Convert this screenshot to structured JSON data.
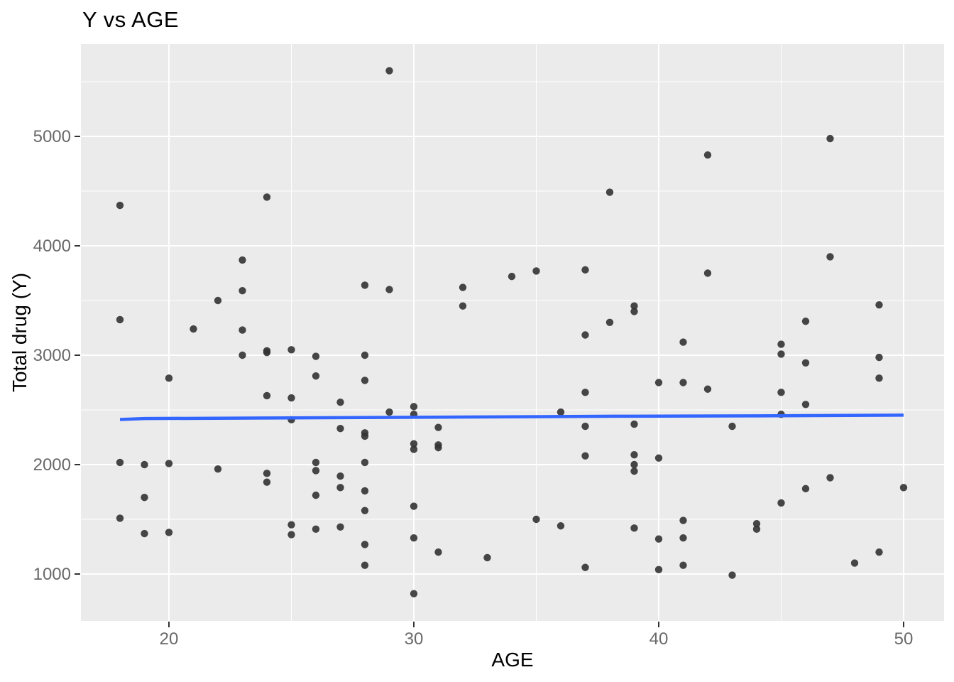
{
  "page": {
    "title": "Y vs AGE"
  },
  "chart_data": {
    "type": "scatter",
    "title": "Y vs AGE",
    "xlabel": "AGE",
    "ylabel": "Total drug (Y)",
    "x_ticks": [
      20,
      30,
      40,
      50
    ],
    "y_ticks": [
      1000,
      2000,
      3000,
      4000,
      5000
    ],
    "x_minor_gridlines": [
      25,
      35,
      45
    ],
    "y_minor_gridlines": [
      1500,
      2500,
      3500,
      4500,
      5500
    ],
    "xlim": [
      16.4,
      51.7
    ],
    "ylim": [
      575,
      5845
    ],
    "grid": "on",
    "legend": "none",
    "points": [
      [
        18,
        4370
      ],
      [
        18,
        3325
      ],
      [
        18,
        2020
      ],
      [
        18,
        1510
      ],
      [
        19,
        2000
      ],
      [
        19,
        1700
      ],
      [
        19,
        1370
      ],
      [
        20,
        2790
      ],
      [
        20,
        2010
      ],
      [
        20,
        1380
      ],
      [
        21,
        3240
      ],
      [
        22,
        3500
      ],
      [
        22,
        1960
      ],
      [
        23,
        3870
      ],
      [
        23,
        3590
      ],
      [
        23,
        3230
      ],
      [
        23,
        3000
      ],
      [
        24,
        4445
      ],
      [
        24,
        3040
      ],
      [
        24,
        3025
      ],
      [
        24,
        2630
      ],
      [
        24,
        1920
      ],
      [
        24,
        1840
      ],
      [
        25,
        3050
      ],
      [
        25,
        2610
      ],
      [
        25,
        2410
      ],
      [
        25,
        1450
      ],
      [
        25,
        1360
      ],
      [
        26,
        2990
      ],
      [
        26,
        2810
      ],
      [
        26,
        2020
      ],
      [
        26,
        1945
      ],
      [
        26,
        1720
      ],
      [
        26,
        1410
      ],
      [
        27,
        2570
      ],
      [
        27,
        2330
      ],
      [
        27,
        1895
      ],
      [
        27,
        1790
      ],
      [
        27,
        1430
      ],
      [
        28,
        3640
      ],
      [
        28,
        3000
      ],
      [
        28,
        2770
      ],
      [
        28,
        2290
      ],
      [
        28,
        2260
      ],
      [
        28,
        2020
      ],
      [
        28,
        1760
      ],
      [
        28,
        1580
      ],
      [
        28,
        1270
      ],
      [
        28,
        1080
      ],
      [
        29,
        5600
      ],
      [
        29,
        3600
      ],
      [
        29,
        2480
      ],
      [
        30,
        2530
      ],
      [
        30,
        2460
      ],
      [
        30,
        2190
      ],
      [
        30,
        2140
      ],
      [
        30,
        1620
      ],
      [
        30,
        1330
      ],
      [
        30,
        820
      ],
      [
        31,
        2340
      ],
      [
        31,
        2180
      ],
      [
        31,
        2155
      ],
      [
        31,
        1200
      ],
      [
        32,
        3620
      ],
      [
        32,
        3450
      ],
      [
        33,
        1150
      ],
      [
        34,
        3720
      ],
      [
        35,
        3770
      ],
      [
        35,
        1500
      ],
      [
        36,
        2480
      ],
      [
        36,
        1440
      ],
      [
        37,
        3780
      ],
      [
        37,
        3185
      ],
      [
        37,
        2660
      ],
      [
        37,
        2350
      ],
      [
        37,
        2080
      ],
      [
        37,
        1060
      ],
      [
        38,
        4490
      ],
      [
        38,
        3300
      ],
      [
        39,
        3450
      ],
      [
        39,
        3400
      ],
      [
        39,
        2370
      ],
      [
        39,
        2090
      ],
      [
        39,
        2000
      ],
      [
        39,
        1940
      ],
      [
        39,
        1420
      ],
      [
        40,
        2750
      ],
      [
        40,
        2060
      ],
      [
        40,
        1320
      ],
      [
        40,
        1040
      ],
      [
        41,
        3120
      ],
      [
        41,
        2750
      ],
      [
        41,
        1490
      ],
      [
        41,
        1330
      ],
      [
        41,
        1080
      ],
      [
        42,
        4830
      ],
      [
        42,
        3750
      ],
      [
        42,
        2690
      ],
      [
        43,
        2350
      ],
      [
        43,
        990
      ],
      [
        44,
        1460
      ],
      [
        44,
        1410
      ],
      [
        45,
        3100
      ],
      [
        45,
        3010
      ],
      [
        45,
        2660
      ],
      [
        45,
        2460
      ],
      [
        45,
        1650
      ],
      [
        46,
        3310
      ],
      [
        46,
        2930
      ],
      [
        46,
        2550
      ],
      [
        46,
        1780
      ],
      [
        47,
        4980
      ],
      [
        47,
        3900
      ],
      [
        47,
        1880
      ],
      [
        48,
        1100
      ],
      [
        49,
        3460
      ],
      [
        49,
        2980
      ],
      [
        49,
        2790
      ],
      [
        49,
        1200
      ],
      [
        50,
        1790
      ]
    ],
    "trend": {
      "x": [
        18,
        19,
        24,
        28.7,
        35.1,
        38.2,
        44.1,
        50
      ],
      "y": [
        2412,
        2421,
        2426,
        2431,
        2438,
        2442,
        2446,
        2452
      ]
    },
    "colors": {
      "panel_bg": "#EBEBEB",
      "gridline": "#FFFFFF",
      "point": "#333333",
      "trend_line": "#3366FF",
      "tick_label": "#696969",
      "tick_mark": "#333333",
      "title_text": "#000000"
    }
  }
}
